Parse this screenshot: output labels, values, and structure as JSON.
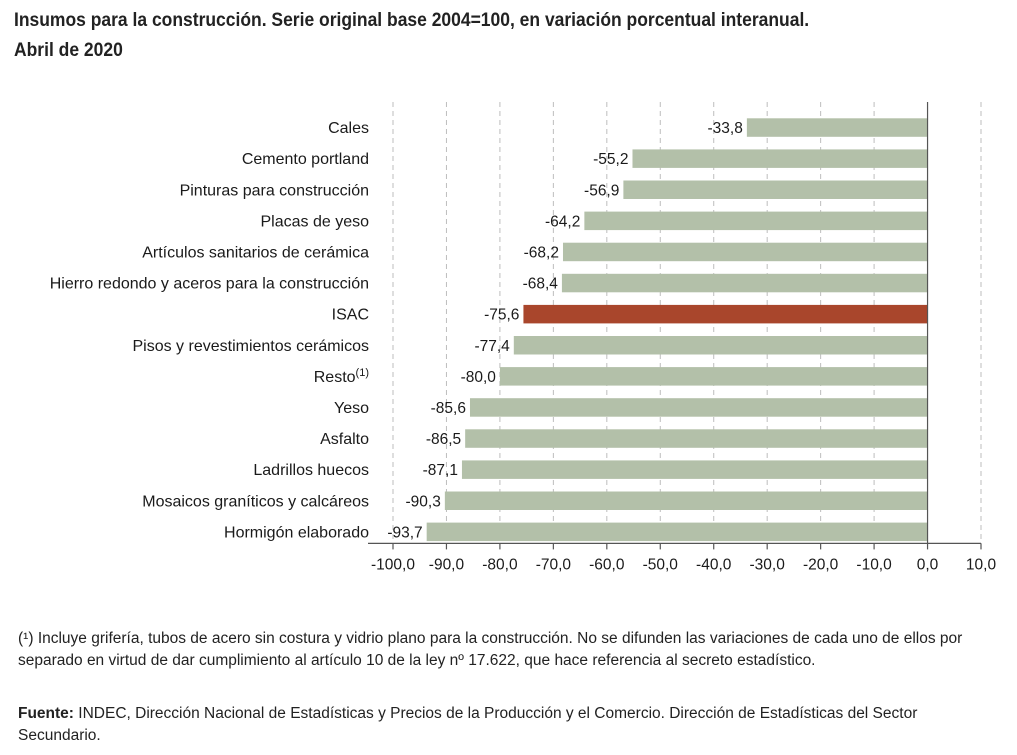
{
  "title_line1": "Insumos para la construcción. Serie original base 2004=100, en variación porcentual interanual.",
  "title_line2": "Abril de 2020",
  "footnote_mark": "(¹)",
  "footnote_text": "Incluye grifería, tubos de acero sin costura y vidrio plano para la construcción. No se difunden las variaciones de cada uno de ellos por separado en virtud de dar cumplimiento al artículo 10 de la ley nº 17.622, que hace referencia al secreto estadístico.",
  "source_label": "Fuente:",
  "source_text": "INDEC, Dirección Nacional de Estadísticas y Precios de la Producción y el Comercio. Dirección de Estadísticas del Sector Secundario.",
  "colors": {
    "bar": "#b3c0a9",
    "highlight": "#a9462c",
    "grid": "#bdbdbd",
    "axis": "#555555"
  },
  "chart_data": {
    "type": "bar",
    "orientation": "horizontal",
    "title": "Insumos para la construcción. Serie original base 2004=100, en variación porcentual interanual. Abril de 2020",
    "categories": [
      "Cales",
      "Cemento portland",
      "Pinturas para construcción",
      "Placas de yeso",
      "Artículos sanitarios de cerámica",
      "Hierro redondo y aceros para la construcción",
      "ISAC",
      "Pisos y revestimientos cerámicos",
      "Resto",
      "Yeso",
      "Asfalto",
      "Ladrillos huecos",
      "Mosaicos graníticos y calcáreos",
      "Hormigón elaborado"
    ],
    "category_superscripts": [
      "",
      "",
      "",
      "",
      "",
      "",
      "",
      "",
      "(1)",
      "",
      "",
      "",
      "",
      ""
    ],
    "values": [
      -33.8,
      -55.2,
      -56.9,
      -64.2,
      -68.2,
      -68.4,
      -75.6,
      -77.4,
      -80.0,
      -85.6,
      -86.5,
      -87.1,
      -90.3,
      -93.7
    ],
    "value_labels": [
      "-33,8",
      "-55,2",
      "-56,9",
      "-64,2",
      "-68,2",
      "-68,4",
      "-75,6",
      "-77,4",
      "-80,0",
      "-85,6",
      "-86,5",
      "-87,1",
      "-90,3",
      "-93,7"
    ],
    "highlight_category": "ISAC",
    "xlim": [
      -100,
      10
    ],
    "x_ticks": [
      -100,
      -90,
      -80,
      -70,
      -60,
      -50,
      -40,
      -30,
      -20,
      -10,
      0,
      10
    ],
    "x_tick_labels": [
      "-100,0",
      "-90,0",
      "-80,0",
      "-70,0",
      "-60,0",
      "-50,0",
      "-40,0",
      "-30,0",
      "-20,0",
      "-10,0",
      "0,0",
      "10,0"
    ],
    "grid": "vertical-dashed",
    "legend": "none"
  }
}
